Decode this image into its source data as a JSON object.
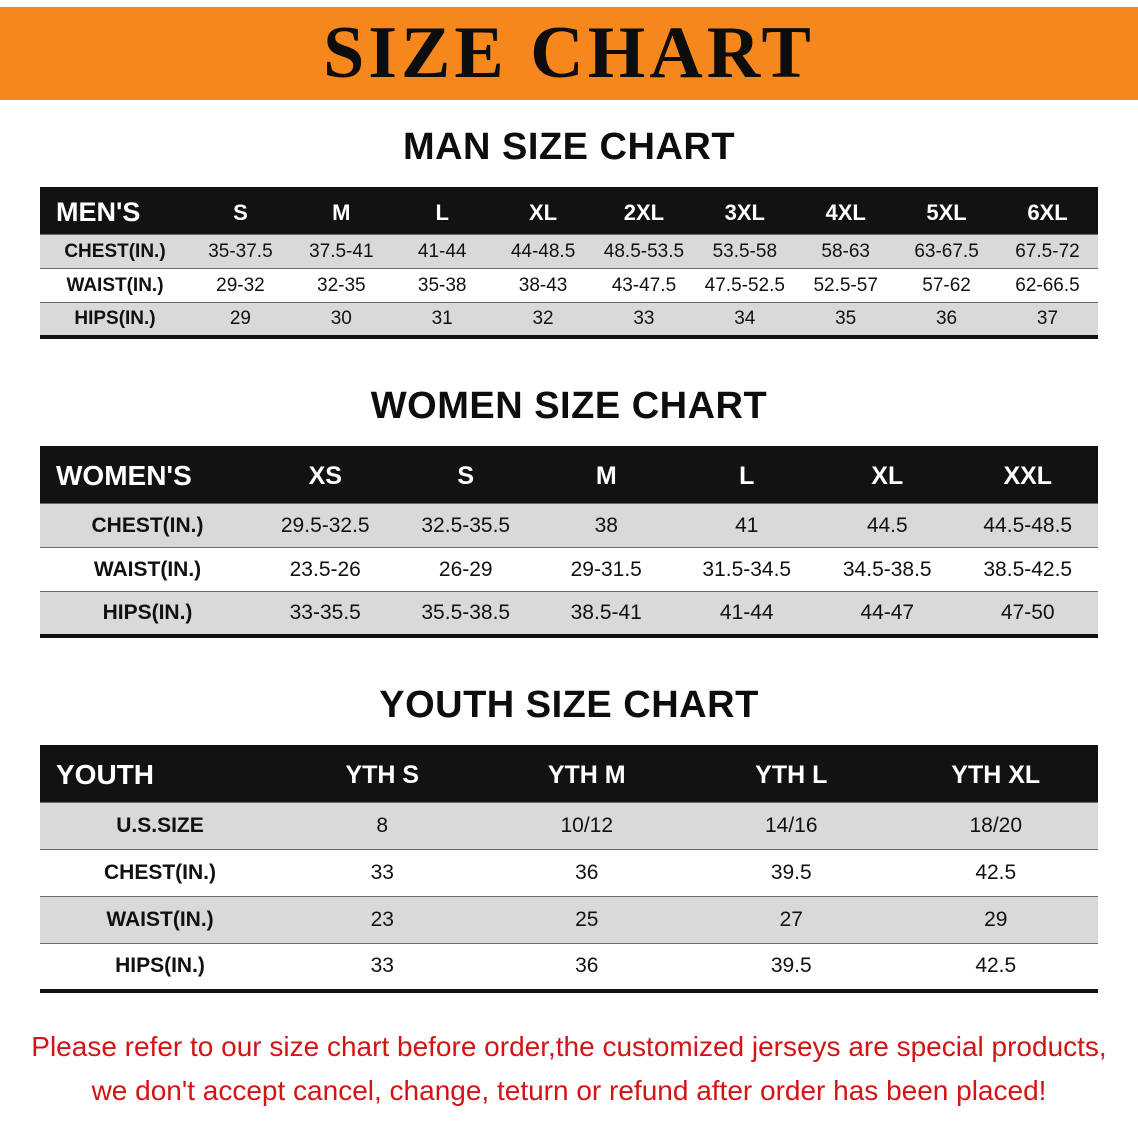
{
  "banner": {
    "title": "SIZE CHART"
  },
  "colors": {
    "banner_bg": "#f6871d",
    "header_black": "#121212",
    "row_gray": "#d9d9d9",
    "note_red": "#d41414"
  },
  "sections": [
    {
      "heading": "MAN SIZE CHART",
      "table": {
        "header": [
          "MEN'S",
          "S",
          "M",
          "L",
          "XL",
          "2XL",
          "3XL",
          "4XL",
          "5XL",
          "6XL"
        ],
        "rows": [
          [
            "CHEST(IN.)",
            "35-37.5",
            "37.5-41",
            "41-44",
            "44-48.5",
            "48.5-53.5",
            "53.5-58",
            "58-63",
            "63-67.5",
            "67.5-72"
          ],
          [
            "WAIST(IN.)",
            "29-32",
            "32-35",
            "35-38",
            "38-43",
            "43-47.5",
            "47.5-52.5",
            "52.5-57",
            "57-62",
            "62-66.5"
          ],
          [
            "HIPS(IN.)",
            "29",
            "30",
            "31",
            "32",
            "33",
            "34",
            "35",
            "36",
            "37"
          ]
        ]
      }
    },
    {
      "heading": "WOMEN SIZE CHART",
      "table": {
        "header": [
          "WOMEN'S",
          "XS",
          "S",
          "M",
          "L",
          "XL",
          "XXL"
        ],
        "rows": [
          [
            "CHEST(IN.)",
            "29.5-32.5",
            "32.5-35.5",
            "38",
            "41",
            "44.5",
            "44.5-48.5"
          ],
          [
            "WAIST(IN.)",
            "23.5-26",
            "26-29",
            "29-31.5",
            "31.5-34.5",
            "34.5-38.5",
            "38.5-42.5"
          ],
          [
            "HIPS(IN.)",
            "33-35.5",
            "35.5-38.5",
            "38.5-41",
            "41-44",
            "44-47",
            "47-50"
          ]
        ]
      }
    },
    {
      "heading": "YOUTH SIZE CHART",
      "table": {
        "header": [
          "YOUTH",
          "YTH S",
          "YTH M",
          "YTH L",
          "YTH XL"
        ],
        "rows": [
          [
            "U.S.SIZE",
            "8",
            "10/12",
            "14/16",
            "18/20"
          ],
          [
            "CHEST(IN.)",
            "33",
            "36",
            "39.5",
            "42.5"
          ],
          [
            "WAIST(IN.)",
            "23",
            "25",
            "27",
            "29"
          ],
          [
            "HIPS(IN.)",
            "33",
            "36",
            "39.5",
            "42.5"
          ]
        ]
      }
    }
  ],
  "footer": {
    "lines": [
      "Please refer to our size chart before order,the customized jerseys are special products,",
      "we don't accept cancel, change, teturn or refund after order has been placed!"
    ]
  }
}
